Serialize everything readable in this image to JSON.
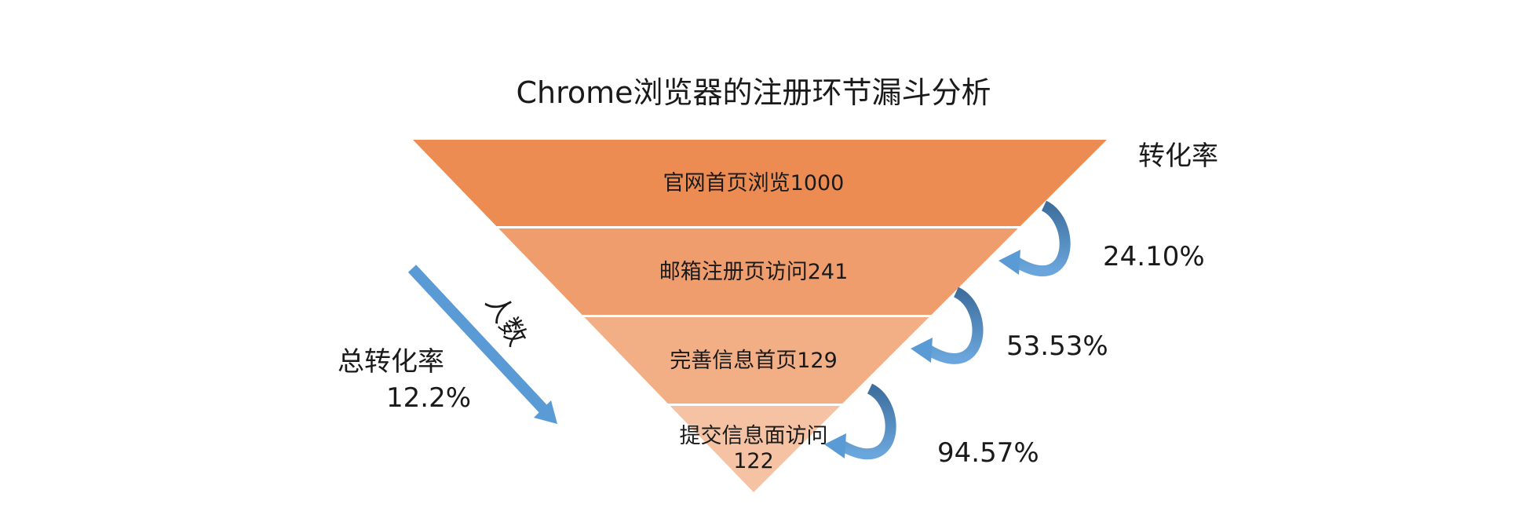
{
  "chart_data": {
    "type": "funnel",
    "title": "Chrome浏览器的注册环节漏斗分析",
    "axis_label": "人数",
    "stages": [
      {
        "name": "官网首页浏览",
        "value": 1000,
        "color": "#ED8C52"
      },
      {
        "name": "邮箱注册页访问",
        "value": 241,
        "color": "#EF9D6D"
      },
      {
        "name": "完善信息首页",
        "value": 129,
        "color": "#F2AF86"
      },
      {
        "name": "提交信息面访问",
        "value": 122,
        "color": "#F5C3A3"
      }
    ],
    "conversion_label": "转化率",
    "conversion_rates": [
      "24.10%",
      "53.53%",
      "94.57%"
    ],
    "total_label": "总转化率",
    "total_rate": "12.2%"
  },
  "colors": {
    "arrow_dark": "#4A78A8",
    "arrow_light": "#5B9BD5",
    "diagonal_arrow": "#5B9BD5"
  },
  "stage_labels": [
    "官网首页浏览1000",
    "邮箱注册页访问241",
    "完善信息首页129",
    "提交信息面访问"
  ],
  "last_stage_value": "122"
}
